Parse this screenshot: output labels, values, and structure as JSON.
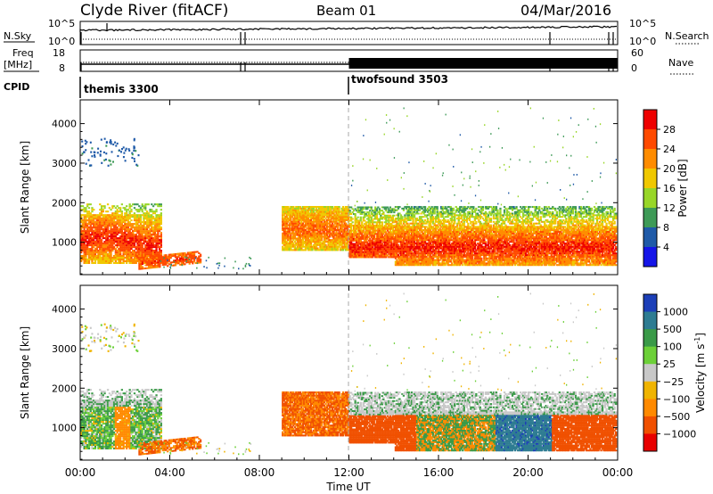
{
  "header": {
    "station": "Clyde River (fitACF)",
    "beam": "Beam 01",
    "date": "04/Mar/2016"
  },
  "top_panels": {
    "nsky_label": "N.Sky",
    "nsky_ticks": [
      "10^5",
      "10^0"
    ],
    "nsearch_label": "N.Search",
    "nsearch_ticks": [
      "10^5",
      "10^0"
    ],
    "freq_label": "Freq",
    "freq_unit": "[MHz]",
    "freq_ticks": [
      "18",
      "8"
    ],
    "nave_label": "Nave",
    "nave_ticks": [
      "60",
      "0"
    ],
    "cpid_label": "CPID",
    "cpid_modes": [
      {
        "name": "themis 3300",
        "start_hour": 0
      },
      {
        "name": "twofsound 3503",
        "start_hour": 12
      }
    ]
  },
  "x_axis": {
    "label": "Time UT",
    "ticks": [
      "00:00",
      "04:00",
      "08:00",
      "12:00",
      "16:00",
      "20:00",
      "00:00"
    ]
  },
  "power_colorbar": {
    "label": "Power [dB]",
    "ticks": [
      "28",
      "24",
      "20",
      "16",
      "12",
      "8",
      "4"
    ],
    "colors": [
      "#ee0000",
      "#ff4a00",
      "#ff8c00",
      "#f0c800",
      "#98d628",
      "#3e9a57",
      "#1f5aa8",
      "#1515e8"
    ]
  },
  "velocity_colorbar": {
    "label": "Velocity [m s",
    "label_sup": "-1",
    "label_end": "]",
    "ticks": [
      "1000",
      "500",
      "100",
      "25",
      "−25",
      "−100",
      "−500",
      "−1000"
    ],
    "colors": [
      "#1c3fb8",
      "#2e7c92",
      "#3a9a48",
      "#6cd038",
      "#c8c8c8",
      "#f0b400",
      "#ff8a00",
      "#f05000",
      "#e80000"
    ]
  },
  "chart_data": [
    {
      "type": "heatmap",
      "name": "power",
      "ylabel": "Slant Range [km]",
      "xlabel": "",
      "xlim": [
        0,
        24
      ],
      "ylim": [
        180,
        4600
      ],
      "yticks": [
        1000,
        2000,
        3000,
        4000
      ],
      "xticks": [
        0,
        4,
        8,
        12,
        16,
        20,
        24
      ],
      "grid": false,
      "vertical_marker_hour": 12,
      "echo_regions": [
        {
          "t0": 0,
          "t1": 3.6,
          "r0": 500,
          "r1": 1900,
          "core_value": 28
        },
        {
          "t0": 2.6,
          "t1": 5.4,
          "r0": 200,
          "r1": 600,
          "core_value": 26
        },
        {
          "t0": 0.0,
          "t1": 2.5,
          "r0": 2900,
          "r1": 3600,
          "core_value": 6
        },
        {
          "t0": 9.0,
          "t1": 12.0,
          "r0": 800,
          "r1": 1900,
          "core_value": 24
        },
        {
          "t0": 12.0,
          "t1": 24.0,
          "r0": 400,
          "r1": 1900,
          "core_value": 28
        }
      ]
    },
    {
      "type": "heatmap",
      "name": "velocity",
      "ylabel": "Slant Range [km]",
      "xlabel": "Time UT",
      "xlim": [
        0,
        24
      ],
      "ylim": [
        180,
        4600
      ],
      "yticks": [
        1000,
        2000,
        3000,
        4000
      ],
      "xticks": [
        0,
        4,
        8,
        12,
        16,
        20,
        24
      ],
      "grid": false,
      "vertical_marker_hour": 12,
      "echo_regions": [
        {
          "t0": 0,
          "t1": 3.6,
          "r0": 500,
          "r1": 1900,
          "typical_velocity": 100
        },
        {
          "t0": 2.6,
          "t1": 5.4,
          "r0": 200,
          "r1": 600,
          "typical_velocity": -300
        },
        {
          "t0": 9.0,
          "t1": 12.0,
          "r0": 800,
          "r1": 1900,
          "typical_velocity": -300
        },
        {
          "t0": 12.0,
          "t1": 24.0,
          "r0": 400,
          "r1": 1900,
          "typical_velocity": 0
        }
      ]
    }
  ]
}
